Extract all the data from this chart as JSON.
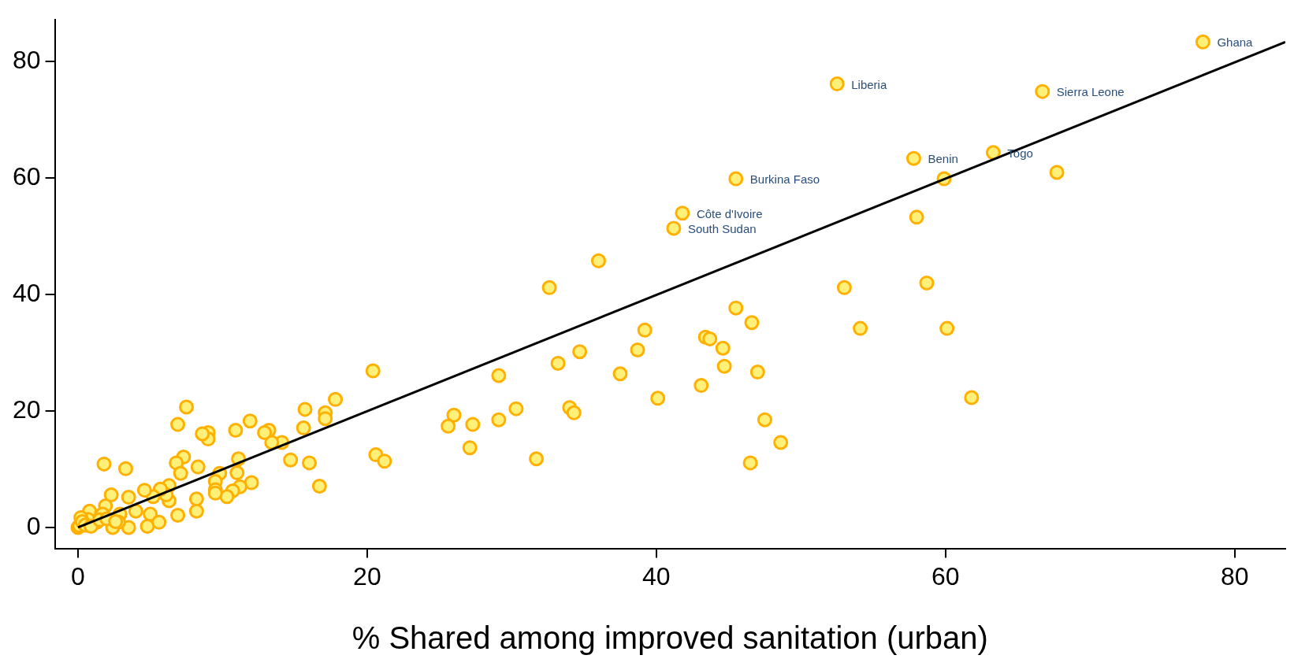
{
  "chart_data": {
    "type": "scatter",
    "xlabel": "% Shared among improved sanitation (urban)",
    "xlim": [
      -1.6,
      83.5
    ],
    "ylim": [
      -3.6,
      87.2
    ],
    "xticks": [
      0,
      20,
      40,
      60,
      80
    ],
    "yticks": [
      0,
      20,
      40,
      60,
      80
    ],
    "grid": false,
    "legend": false,
    "marker": "circle",
    "series": [
      {
        "color": "#ffb000",
        "x": [
          77.8,
          52.5,
          66.7,
          57.8,
          63.3,
          45.5,
          41.8,
          41.2,
          59.9,
          67.7,
          58.0,
          36.0,
          32.6,
          53.0,
          58.7,
          54.1,
          60.1,
          45.5,
          46.6,
          39.2,
          38.7,
          43.4,
          43.7,
          44.6,
          44.7,
          47.0,
          34.7,
          33.2,
          37.5,
          29.1,
          43.1,
          40.1,
          61.8,
          30.3,
          34.0,
          34.3,
          26.0,
          25.6,
          27.3,
          29.1,
          47.5,
          48.6,
          27.1,
          31.7,
          46.5,
          20.4,
          20.6,
          21.2,
          17.8,
          15.7,
          17.1,
          17.1,
          15.6,
          16.7,
          16.0,
          14.7,
          14.1,
          13.4,
          13.2,
          12.9,
          11.9,
          10.9,
          12.0,
          11.1,
          11.0,
          11.2,
          10.7,
          10.3,
          9.8,
          9.5,
          9.5,
          9.5,
          9.0,
          9.0,
          8.6,
          8.3,
          8.2,
          8.2,
          7.5,
          6.9,
          7.3,
          6.8,
          7.1,
          6.3,
          6.3,
          6.9,
          6.1,
          5.7,
          5.2,
          5.0,
          4.8,
          5.6,
          4.6,
          4.0,
          3.5,
          3.5,
          3.3,
          2.9,
          2.8,
          2.4,
          2.3,
          1.8,
          1.9,
          1.7,
          1.3,
          0.8,
          0.7,
          0.2,
          0,
          0.1,
          0.3,
          0.5,
          0.9,
          1.5,
          2.0,
          2.6
        ],
        "values": [
          83.4,
          76.2,
          74.9,
          63.4,
          64.4,
          59.9,
          54.0,
          51.4,
          59.9,
          61.0,
          53.3,
          45.8,
          41.2,
          41.2,
          42.0,
          34.2,
          34.2,
          37.7,
          35.2,
          33.9,
          30.5,
          32.7,
          32.4,
          30.8,
          27.7,
          26.7,
          30.2,
          28.2,
          26.4,
          26.1,
          24.4,
          22.2,
          22.3,
          20.4,
          20.6,
          19.7,
          19.3,
          17.4,
          17.7,
          18.5,
          18.5,
          14.6,
          13.7,
          11.8,
          11.1,
          26.9,
          12.5,
          11.4,
          22.0,
          20.3,
          19.7,
          18.7,
          17.1,
          7.1,
          11.1,
          11.6,
          14.6,
          14.6,
          16.7,
          16.3,
          18.3,
          16.7,
          7.7,
          11.8,
          9.4,
          7.0,
          6.3,
          5.3,
          9.3,
          7.9,
          6.5,
          5.9,
          16.3,
          15.2,
          16.1,
          10.4,
          4.9,
          2.8,
          20.7,
          17.7,
          12.1,
          11.1,
          9.3,
          7.2,
          4.6,
          2.1,
          5.6,
          6.6,
          5.3,
          2.3,
          0.2,
          0.9,
          6.4,
          2.8,
          5.2,
          0,
          10.1,
          2.3,
          0.9,
          0,
          5.6,
          10.9,
          3.7,
          2.3,
          0.9,
          2.8,
          1.4,
          1.7,
          0,
          0.3,
          1.0,
          0.4,
          0.2,
          1.3,
          1.5,
          1.0
        ]
      },
      {
        "type": "line",
        "color": "#000000",
        "x": [
          0,
          83.5
        ],
        "values": [
          0,
          83.4
        ],
        "marker": "none"
      }
    ],
    "annotations": [
      {
        "text": "Ghana",
        "x": 77.8,
        "y": 83.4
      },
      {
        "text": "Liberia",
        "x": 52.5,
        "y": 76.2
      },
      {
        "text": "Sierra Leone",
        "x": 66.7,
        "y": 74.9
      },
      {
        "text": "Benin",
        "x": 57.8,
        "y": 63.4
      },
      {
        "text": "Togo",
        "x": 63.3,
        "y": 64.4
      },
      {
        "text": "Burkina Faso",
        "x": 45.5,
        "y": 59.9
      },
      {
        "text": "Côte d'Ivoire",
        "x": 41.8,
        "y": 54.0
      },
      {
        "text": "South Sudan",
        "x": 41.2,
        "y": 51.4
      }
    ]
  }
}
